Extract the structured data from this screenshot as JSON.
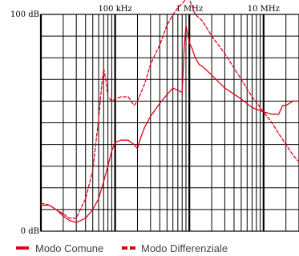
{
  "chart_data": {
    "type": "line",
    "title": "",
    "xscale": "log",
    "xlim_hz": [
      10000,
      30000000
    ],
    "ylim_db": [
      0,
      100
    ],
    "x_tick_labels": [
      "100 kHz",
      "1 MHz",
      "10 MHz"
    ],
    "x_tick_values_hz": [
      100000,
      1000000,
      10000000
    ],
    "y_tick_labels": [
      "100 dB",
      "0 dB"
    ],
    "y_tick_values_db": [
      100,
      0
    ],
    "grid": true,
    "legend_position": "bottom",
    "series": [
      {
        "name": "Modo Comune",
        "style": "solid",
        "color": "#e2001a",
        "x": [
          10000,
          13000,
          16000,
          20000,
          24000,
          30000,
          40000,
          50000,
          60000,
          70000,
          80000,
          90000,
          100000,
          120000,
          150000,
          180000,
          200000,
          220000,
          250000,
          300000,
          400000,
          500000,
          600000,
          700000,
          800000,
          850000,
          900000,
          950000,
          1000000,
          1100000,
          1200000,
          1350000,
          1500000,
          2000000,
          3000000,
          5000000,
          7000000,
          10000000,
          13000000,
          16000000,
          17000000,
          18000000,
          20000000,
          25000000,
          30000000
        ],
        "y": [
          12,
          12,
          10,
          7,
          5,
          4,
          6,
          10,
          15,
          23,
          30,
          37,
          41,
          42,
          42,
          40,
          38,
          43,
          48,
          53,
          59,
          63,
          66,
          65,
          64,
          84,
          95,
          91,
          87,
          84,
          80,
          77,
          76,
          72,
          66,
          61,
          57,
          55,
          54,
          54,
          56,
          58,
          58,
          60,
          60
        ]
      },
      {
        "name": "Modo Differenziale",
        "style": "dashed",
        "color": "#e2001a",
        "x": [
          10000,
          13000,
          16000,
          20000,
          24000,
          30000,
          40000,
          50000,
          60000,
          65000,
          70000,
          75000,
          80000,
          90000,
          100000,
          120000,
          150000,
          180000,
          200000,
          250000,
          300000,
          400000,
          500000,
          600000,
          700000,
          800000,
          900000,
          1000000,
          1200000,
          1500000,
          2000000,
          3000000,
          5000000,
          7000000,
          10000000,
          13000000,
          16000000,
          20000000,
          25000000,
          30000000
        ],
        "y": [
          13,
          12,
          10,
          8,
          6,
          6,
          15,
          28,
          52,
          65,
          75,
          70,
          62,
          60,
          61,
          62,
          62,
          58,
          60,
          68,
          77,
          86,
          95,
          100,
          103,
          105,
          107,
          107,
          100,
          97,
          90,
          82,
          70,
          62,
          55,
          50,
          45,
          40,
          35,
          32
        ]
      }
    ]
  },
  "legend": {
    "solid_label": "Modo Comune",
    "dashed_label": "Modo Differenziale"
  }
}
